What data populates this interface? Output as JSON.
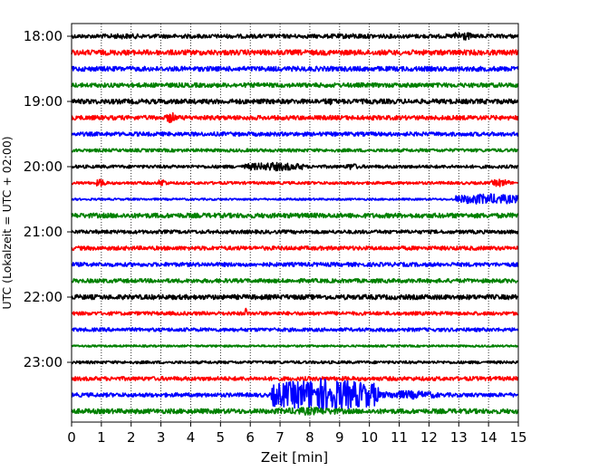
{
  "chart_data": {
    "type": "line",
    "title": "",
    "xlabel": "Zeit  [min]",
    "ylabel": "UTC (Lokalzeit = UTC + 02:00)",
    "xlim": [
      0,
      15
    ],
    "x_ticks": [
      "0",
      "1",
      "2",
      "3",
      "4",
      "5",
      "6",
      "7",
      "8",
      "9",
      "10",
      "11",
      "12",
      "13",
      "14",
      "15"
    ],
    "y_ticks": [
      "18:00",
      "19:00",
      "20:00",
      "21:00",
      "22:00",
      "23:00"
    ],
    "grid": "vertical dotted",
    "row_interval_min": 15,
    "colors": {
      "black": "#000000",
      "red": "#ff0000",
      "blue": "#0000ff",
      "green": "#008000"
    },
    "series": [
      {
        "row_start": "18:00",
        "color": "#000000",
        "amp": 1.0,
        "bursts": [
          [
            12.8,
            13.4,
            2.5
          ],
          [
            0.5,
            3,
            1.3
          ],
          [
            8,
            11,
            1.3
          ]
        ]
      },
      {
        "row_start": "18:15",
        "color": "#ff0000",
        "amp": 1.3,
        "bursts": []
      },
      {
        "row_start": "18:30",
        "color": "#0000ff",
        "amp": 1.2,
        "bursts": []
      },
      {
        "row_start": "18:45",
        "color": "#008000",
        "amp": 1.1,
        "bursts": [
          [
            3,
            6,
            0.7
          ]
        ]
      },
      {
        "row_start": "19:00",
        "color": "#000000",
        "amp": 1.2,
        "bursts": [
          [
            8.5,
            8.8,
            2
          ]
        ]
      },
      {
        "row_start": "19:15",
        "color": "#ff0000",
        "amp": 1.1,
        "bursts": [
          [
            3.2,
            3.5,
            3
          ],
          [
            6,
            8,
            0.6
          ]
        ]
      },
      {
        "row_start": "19:30",
        "color": "#0000ff",
        "amp": 1.0,
        "bursts": []
      },
      {
        "row_start": "19:45",
        "color": "#008000",
        "amp": 0.8,
        "bursts": [
          [
            9,
            15,
            0.4
          ]
        ]
      },
      {
        "row_start": "20:00",
        "color": "#000000",
        "amp": 0.8,
        "bursts": [
          [
            5.8,
            7.8,
            2.2
          ],
          [
            9.2,
            9.6,
            1.8
          ]
        ]
      },
      {
        "row_start": "20:15",
        "color": "#ff0000",
        "amp": 0.7,
        "bursts": [
          [
            0.8,
            1.2,
            2
          ],
          [
            2.9,
            3.2,
            2
          ],
          [
            14.1,
            14.7,
            2
          ]
        ]
      },
      {
        "row_start": "20:30",
        "color": "#0000ff",
        "amp": 0.5,
        "bursts": [
          [
            12.9,
            15,
            2.8
          ]
        ]
      },
      {
        "row_start": "20:45",
        "color": "#008000",
        "amp": 1.2,
        "bursts": []
      },
      {
        "row_start": "21:00",
        "color": "#000000",
        "amp": 0.9,
        "bursts": []
      },
      {
        "row_start": "21:15",
        "color": "#ff0000",
        "amp": 1.0,
        "bursts": [
          [
            8,
            10,
            0.5
          ]
        ]
      },
      {
        "row_start": "21:30",
        "color": "#0000ff",
        "amp": 1.0,
        "bursts": []
      },
      {
        "row_start": "21:45",
        "color": "#008000",
        "amp": 1.0,
        "bursts": []
      },
      {
        "row_start": "22:00",
        "color": "#000000",
        "amp": 1.2,
        "bursts": [
          [
            3.8,
            6.4,
            0.5
          ]
        ]
      },
      {
        "row_start": "22:15",
        "color": "#ff0000",
        "amp": 0.9,
        "bursts": [
          [
            5.8,
            5.9,
            3
          ],
          [
            7,
            9.5,
            0.6
          ]
        ]
      },
      {
        "row_start": "22:30",
        "color": "#0000ff",
        "amp": 0.9,
        "bursts": []
      },
      {
        "row_start": "22:45",
        "color": "#008000",
        "amp": 0.5,
        "bursts": []
      },
      {
        "row_start": "23:00",
        "color": "#000000",
        "amp": 0.7,
        "bursts": []
      },
      {
        "row_start": "23:15",
        "color": "#ff0000",
        "amp": 1.0,
        "bursts": [
          [
            6.5,
            15,
            0.6
          ]
        ]
      },
      {
        "row_start": "23:30",
        "color": "#0000ff",
        "amp": 1.0,
        "bursts": [
          [
            6.7,
            10.3,
            8.5
          ],
          [
            10.3,
            12.3,
            2.2
          ]
        ]
      },
      {
        "row_start": "23:45",
        "color": "#008000",
        "amp": 1.2,
        "bursts": [
          [
            6.8,
            9.2,
            2
          ]
        ]
      }
    ]
  }
}
